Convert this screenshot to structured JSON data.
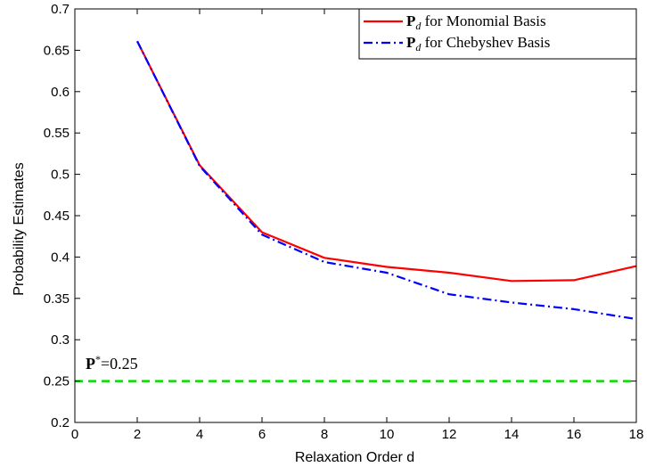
{
  "chart_data": {
    "type": "line",
    "xlabel": "Relaxation Order d",
    "ylabel": "Probability Estimates",
    "xlim": [
      0,
      18
    ],
    "ylim": [
      0.2,
      0.7
    ],
    "xticks": [
      "0",
      "2",
      "4",
      "6",
      "8",
      "10",
      "12",
      "14",
      "16",
      "18"
    ],
    "yticks": [
      "0.2",
      "0.25",
      "0.3",
      "0.35",
      "0.4",
      "0.45",
      "0.5",
      "0.55",
      "0.6",
      "0.65",
      "0.7"
    ],
    "legend_position": "top-right",
    "grid": false,
    "series": [
      {
        "name": "P_d for Monomial Basis",
        "legend_bold": "P",
        "legend_sub": "d",
        "legend_rest": " for Monomial Basis",
        "color": "#ff0000",
        "style": "solid",
        "x": [
          2,
          4,
          6,
          8,
          10,
          12,
          14,
          16,
          18
        ],
        "y": [
          0.661,
          0.511,
          0.43,
          0.399,
          0.388,
          0.381,
          0.371,
          0.372,
          0.389
        ]
      },
      {
        "name": "P_d for Chebyshev Basis",
        "legend_bold": "P",
        "legend_sub": "d",
        "legend_rest": " for Chebyshev Basis",
        "color": "#0000ff",
        "style": "dashdot",
        "x": [
          2,
          4,
          6,
          8,
          10,
          12,
          14,
          16,
          18
        ],
        "y": [
          0.661,
          0.51,
          0.427,
          0.394,
          0.381,
          0.355,
          0.345,
          0.337,
          0.325
        ]
      }
    ],
    "reference_line": {
      "y": 0.25,
      "color": "#00dd00",
      "style": "dashed",
      "label_bold": "P",
      "label_sup": "*",
      "label_rest": "=0.25"
    }
  }
}
